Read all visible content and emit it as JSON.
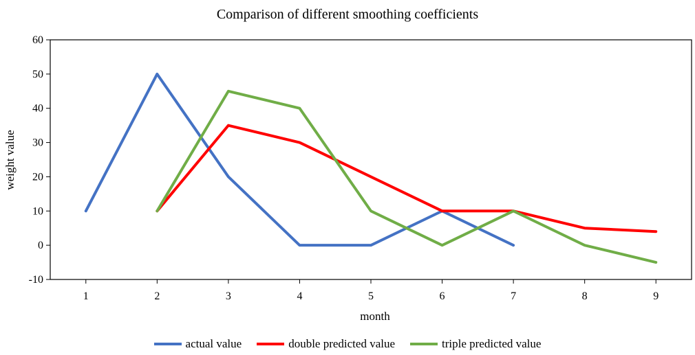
{
  "chart_data": {
    "type": "line",
    "title": "Comparison of different smoothing coefficients",
    "xlabel": "month",
    "ylabel": "weight value",
    "x": [
      1,
      2,
      3,
      4,
      5,
      6,
      7,
      8,
      9
    ],
    "xlim": [
      0.5,
      9.5
    ],
    "ylim": [
      -10,
      60
    ],
    "yticks": [
      -10,
      0,
      10,
      20,
      30,
      40,
      50,
      60
    ],
    "grid": false,
    "legend_position": "bottom",
    "series": [
      {
        "name": "actual value",
        "color": "#4472C4",
        "values": [
          10,
          50,
          20,
          0,
          0,
          10,
          0,
          null,
          null
        ]
      },
      {
        "name": "double predicted value",
        "color": "#FF0000",
        "values": [
          null,
          10,
          35,
          30,
          20,
          10,
          10,
          5,
          4
        ]
      },
      {
        "name": "triple predicted value",
        "color": "#70AD47",
        "values": [
          null,
          10,
          45,
          40,
          10,
          0,
          10,
          0,
          -5
        ]
      }
    ]
  }
}
